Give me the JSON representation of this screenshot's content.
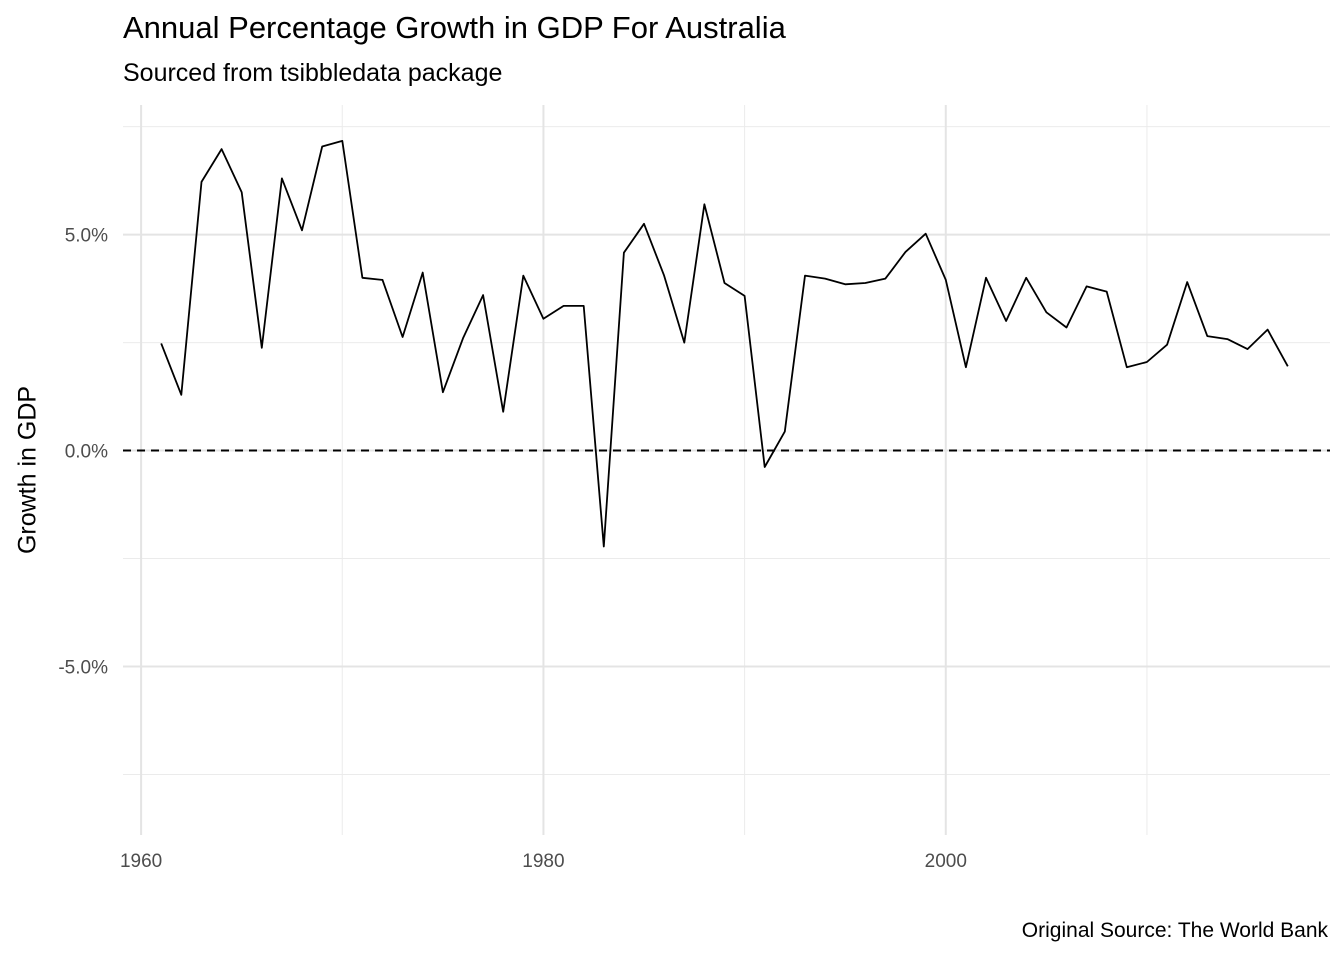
{
  "chart_data": {
    "type": "line",
    "title": "Annual Percentage Growth in GDP For Australia",
    "subtitle": "Sourced from tsibbledata package",
    "caption": "Original Source: The World Bank",
    "xlabel": "",
    "ylabel": "Growth in GDP",
    "xlim": [
      1959.1,
      2019.1
    ],
    "ylim": [
      -8.9,
      8.0
    ],
    "x_ticks": [
      1960,
      1980,
      2000
    ],
    "x_tick_labels": [
      "1960",
      "1980",
      "2000"
    ],
    "y_ticks": [
      -5,
      0,
      5
    ],
    "y_tick_labels": [
      "-5.0%",
      "0.0%",
      "5.0%"
    ],
    "reference_line": {
      "y": 0,
      "style": "dashed"
    },
    "grid": true,
    "legend": "none",
    "series": [
      {
        "x": [
          1961,
          1962,
          1963,
          1964,
          1965,
          1966,
          1967,
          1968,
          1969,
          1970,
          1971,
          1972,
          1973,
          1974,
          1975,
          1976,
          1977,
          1978,
          1979,
          1980,
          1981,
          1982,
          1983,
          1984,
          1985,
          1986,
          1987,
          1988,
          1989,
          1990,
          1991,
          1992,
          1993,
          1994,
          1995,
          1996,
          1997,
          1998,
          1999,
          2000,
          2001,
          2002,
          2003,
          2004,
          2005,
          2006,
          2007,
          2008,
          2009,
          2010,
          2011,
          2012,
          2013,
          2014,
          2015,
          2016,
          2017
        ],
        "values": [
          2.48,
          1.29,
          6.22,
          6.98,
          5.98,
          2.38,
          6.3,
          5.1,
          7.04,
          7.17,
          4.0,
          3.95,
          2.63,
          4.12,
          1.35,
          2.6,
          3.6,
          0.9,
          4.05,
          3.05,
          3.35,
          3.35,
          -2.22,
          4.58,
          5.25,
          4.05,
          2.5,
          5.7,
          3.88,
          3.58,
          -0.38,
          0.44,
          4.05,
          3.98,
          3.85,
          3.88,
          3.98,
          4.6,
          5.02,
          3.95,
          1.93,
          4.0,
          3.0,
          4.0,
          3.2,
          2.85,
          3.8,
          3.68,
          1.93,
          2.05,
          2.45,
          3.9,
          2.65,
          2.58,
          2.35,
          2.8,
          1.95
        ],
        "color": "#000000"
      }
    ]
  }
}
